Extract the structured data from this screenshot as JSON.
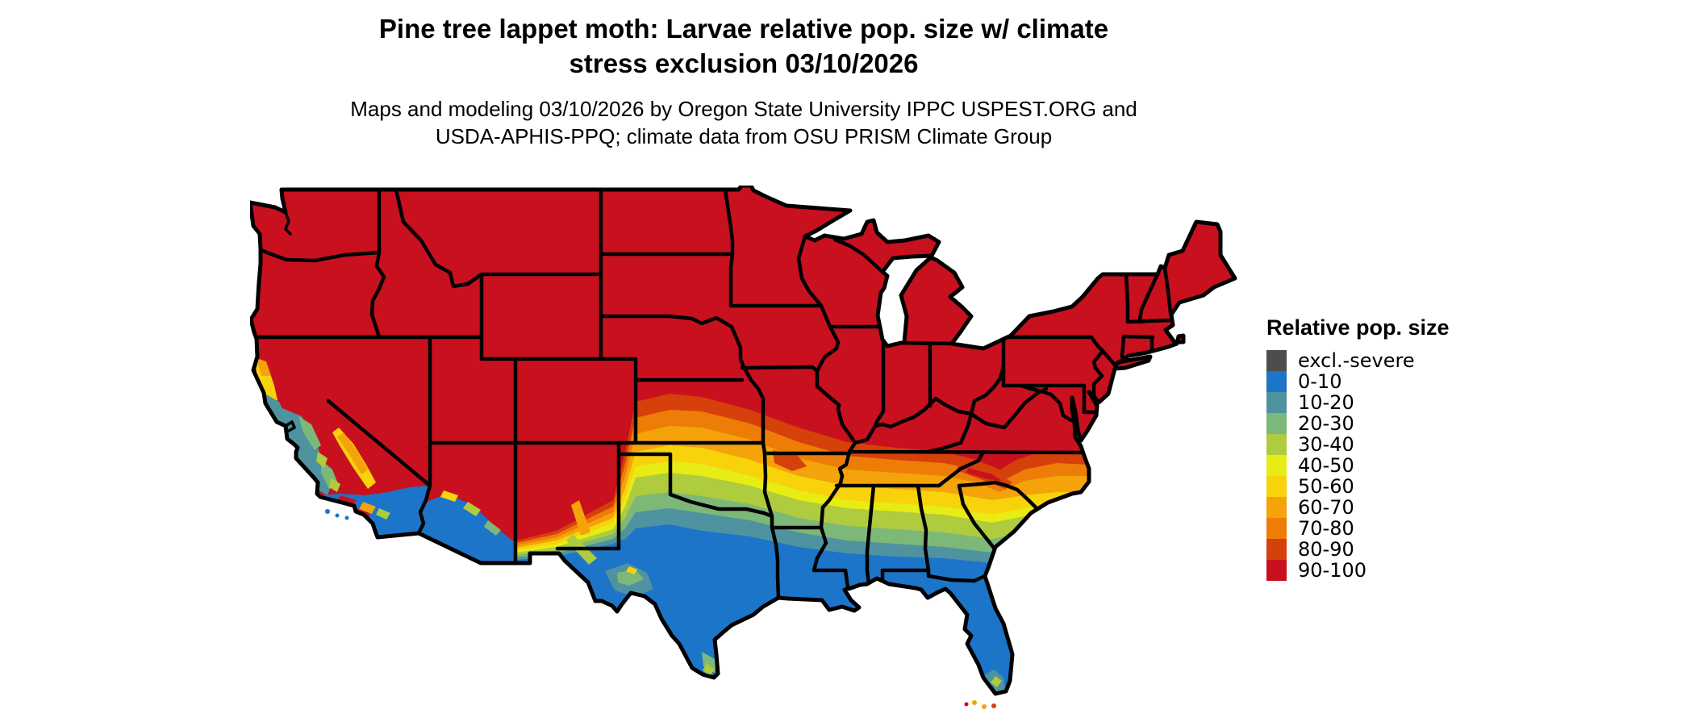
{
  "title": {
    "line1": "Pine tree lappet moth: Larvae relative pop. size w/ climate",
    "line2": "stress exclusion 03/10/2026"
  },
  "subtitle": {
    "line1": "Maps and modeling 03/10/2026 by Oregon State University IPPC USPEST.ORG and",
    "line2": "USDA-APHIS-PPQ; climate data from OSU PRISM Climate Group"
  },
  "legend": {
    "title": "Relative pop. size",
    "items": [
      {
        "label": "excl.-severe",
        "color": "#4D4D4D"
      },
      {
        "label": "0-10",
        "color": "#1C75C8"
      },
      {
        "label": "10-20",
        "color": "#4F93A0"
      },
      {
        "label": "20-30",
        "color": "#7CB878"
      },
      {
        "label": "30-40",
        "color": "#AFCB3E"
      },
      {
        "label": "40-50",
        "color": "#E7EC15"
      },
      {
        "label": "50-60",
        "color": "#F8D30B"
      },
      {
        "label": "60-70",
        "color": "#F4A30B"
      },
      {
        "label": "70-80",
        "color": "#EE7D08"
      },
      {
        "label": "80-90",
        "color": "#D6400B"
      },
      {
        "label": "90-100",
        "color": "#C8101E"
      }
    ]
  },
  "map": {
    "outline_color": "#000000",
    "background_color": "#FFFFFF"
  }
}
